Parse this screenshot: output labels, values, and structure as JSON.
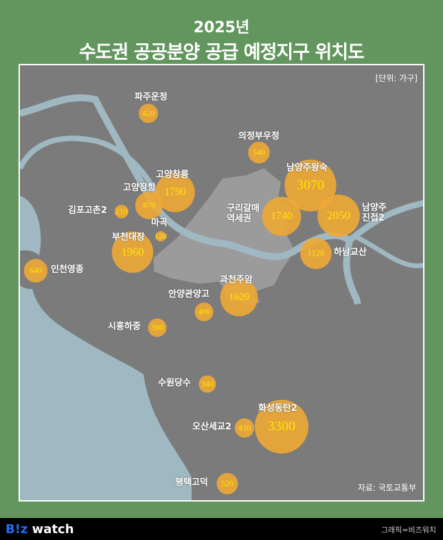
{
  "title": {
    "year": "2025년",
    "main": "수도권 공공분양 공급 예정지구 위치도"
  },
  "unit": "[단위: 가구]",
  "source": "자료: 국토교통부",
  "footer": {
    "logo_b": "B!z",
    "logo_rest": " watch",
    "credit": "그래픽=비즈워치"
  },
  "colors": {
    "background": "#63965e",
    "land": "#7b7b7b",
    "seoul": "#9b9b9b",
    "water": "#9fb8c2",
    "bubble": "#f0a935",
    "value_text": "#ffe600"
  },
  "districts": [
    {
      "name": "파주운정",
      "value": 420
    },
    {
      "name": "의정부우정",
      "value": 540
    },
    {
      "name": "남양주왕숙",
      "value": 3070
    },
    {
      "name": "고양창릉",
      "value": 1790
    },
    {
      "name": "고양장항",
      "value": 870
    },
    {
      "name": "김포고촌2",
      "value": 210
    },
    {
      "name": "마곡",
      "value": 120
    },
    {
      "name": "구리갈매\n역세권",
      "value": 1740
    },
    {
      "name": "남양주\n진접2",
      "value": 2050
    },
    {
      "name": "부천대장",
      "value": 1960
    },
    {
      "name": "하남교산",
      "value": 1120
    },
    {
      "name": "인천영종",
      "value": 640
    },
    {
      "name": "과천주암",
      "value": 1620
    },
    {
      "name": "안양관양고",
      "value": 400
    },
    {
      "name": "시흥하중",
      "value": 390
    },
    {
      "name": "수원당수",
      "value": 340
    },
    {
      "name": "화성동탄2",
      "value": 3300
    },
    {
      "name": "오산세교2",
      "value": 430
    },
    {
      "name": "평택고덕",
      "value": 520
    }
  ]
}
